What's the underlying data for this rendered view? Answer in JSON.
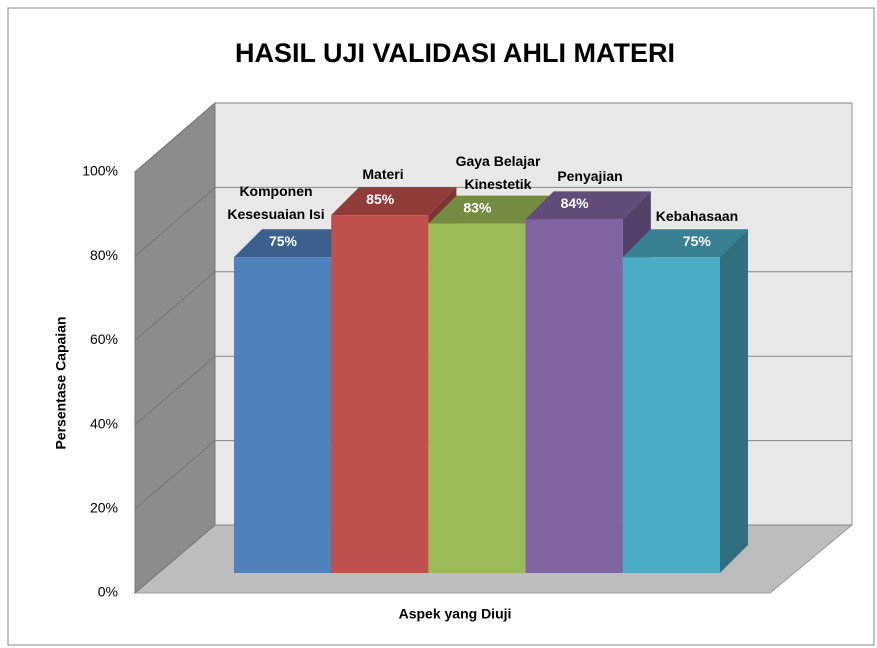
{
  "chart_data": {
    "type": "bar3d",
    "title": "HASIL UJI VALIDASI AHLI MATERI",
    "y_label": "Persentase Capaian",
    "x_label": "Aspek yang Diuji",
    "categories": [
      "Komponen Kesesuaian Isi",
      "Materi",
      "Gaya Belajar Kinestetik",
      "Penyajian",
      "Kebahasaan"
    ],
    "values": [
      75,
      85,
      83,
      84,
      75
    ],
    "value_labels": [
      "75%",
      "85%",
      "83%",
      "84%",
      "75%"
    ],
    "colors": [
      "#4f81bd",
      "#c0504d",
      "#9bbb59",
      "#8064a2",
      "#4bacc6"
    ],
    "ylim": [
      0,
      100
    ],
    "yticks": [
      {
        "value": 0,
        "label": "0%"
      },
      {
        "value": 20,
        "label": "20%"
      },
      {
        "value": 40,
        "label": "40%"
      },
      {
        "value": 60,
        "label": "60%"
      },
      {
        "value": 80,
        "label": "80%"
      },
      {
        "value": 100,
        "label": "100%"
      }
    ],
    "grid": true
  }
}
